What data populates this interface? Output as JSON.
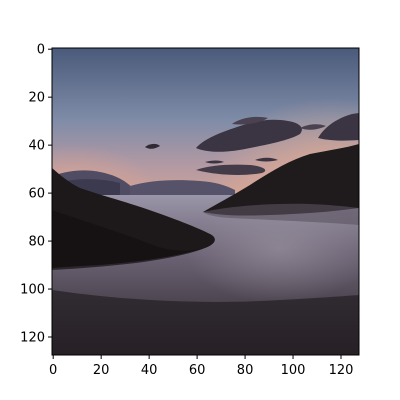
{
  "image": {
    "kind": "photograph",
    "subject": "dusk lake between dark hills",
    "palette": {
      "sky_top": "#4a5a78",
      "sky_mid": "#7c8aa6",
      "sky_glow": "#e0a88f",
      "cloud": "#3a3340",
      "hill": "#1e1a1d",
      "water_light": "#8a8290",
      "water_dark": "#2a2329"
    }
  },
  "axes": {
    "xlim": [
      0,
      128
    ],
    "ylim": [
      128,
      0
    ],
    "x_ticks": [
      "0",
      "20",
      "40",
      "60",
      "80",
      "100",
      "120"
    ],
    "y_ticks": [
      "0",
      "20",
      "40",
      "60",
      "80",
      "100",
      "120"
    ]
  }
}
